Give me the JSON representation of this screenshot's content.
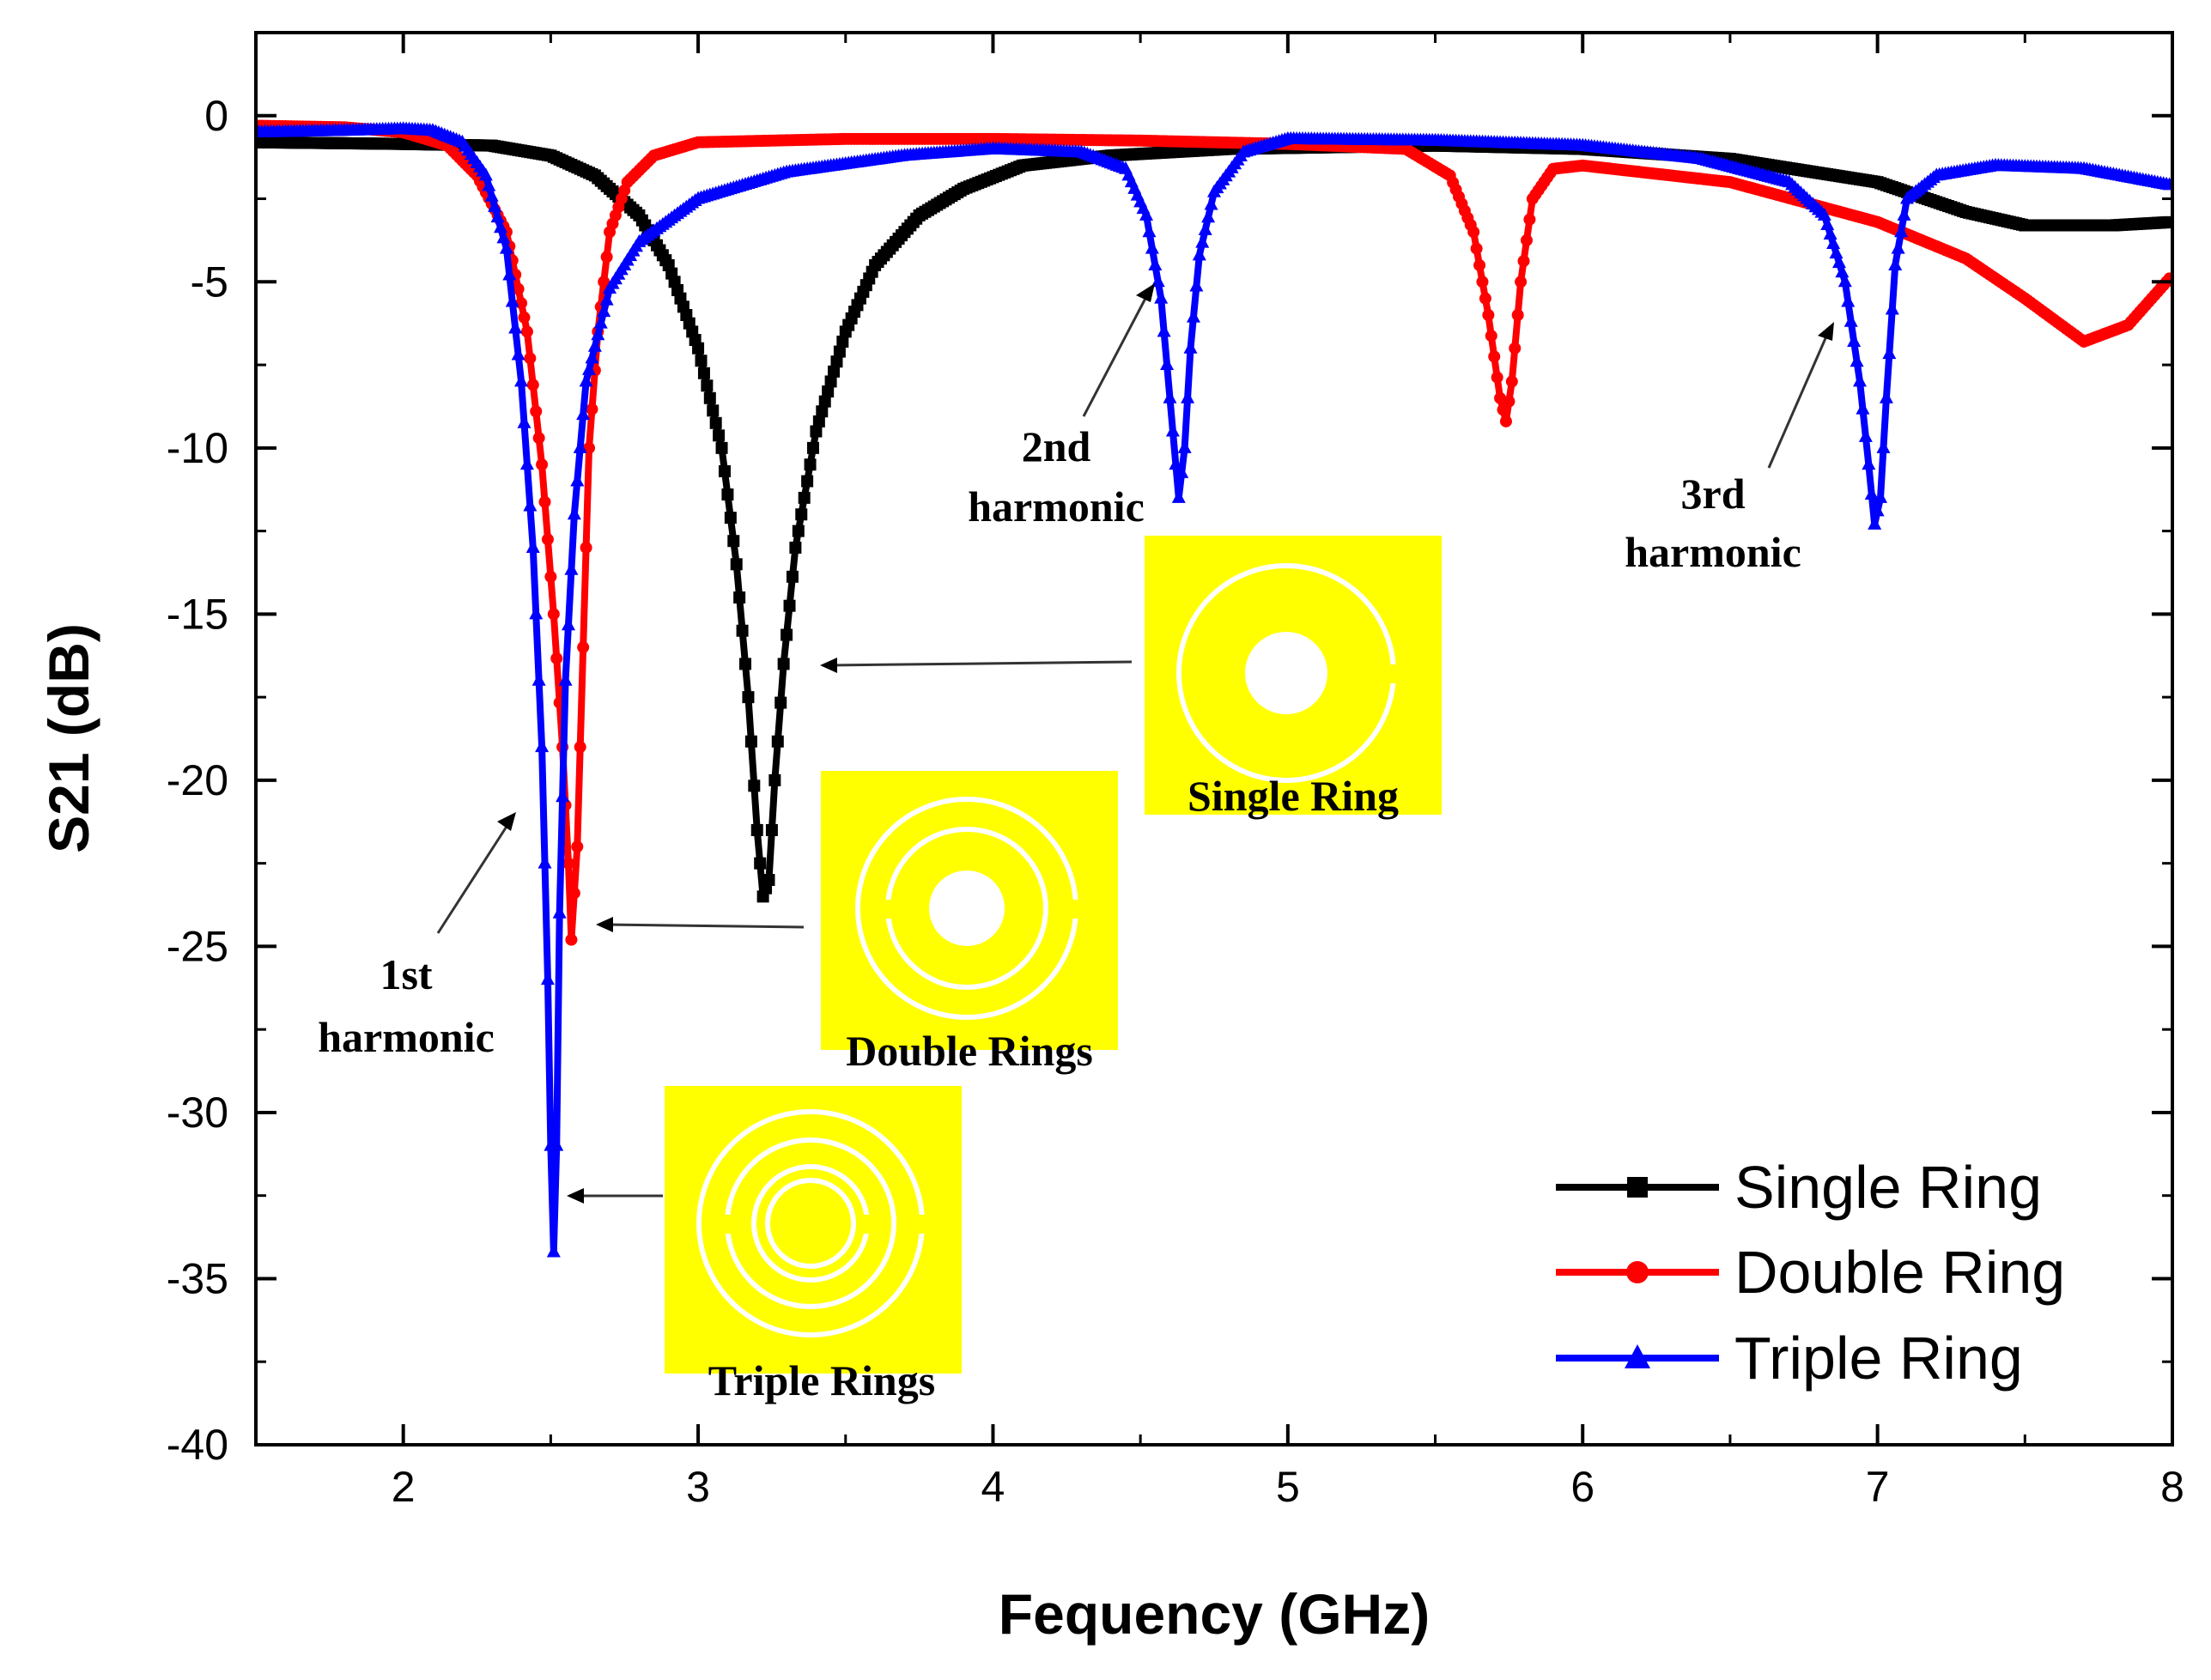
{
  "chart_data": {
    "type": "line",
    "xlabel": "Fequency (GHz)",
    "ylabel": "S21 (dB)",
    "xlim": [
      1.5,
      8
    ],
    "ylim": [
      -40,
      2.5
    ],
    "xticks": [
      2,
      3,
      4,
      5,
      6,
      7,
      8
    ],
    "yticks": [
      0,
      -5,
      -10,
      -15,
      -20,
      -25,
      -30,
      -35,
      -40
    ],
    "grid": false,
    "legend_position": "bottom-right",
    "series": [
      {
        "name": "Single Ring",
        "color": "#000000",
        "marker": "square",
        "points": [
          [
            1.5,
            -0.8
          ],
          [
            2.0,
            -0.85
          ],
          [
            2.3,
            -0.9
          ],
          [
            2.5,
            -1.2
          ],
          [
            2.65,
            -1.8
          ],
          [
            2.8,
            -3.0
          ],
          [
            2.9,
            -4.5
          ],
          [
            3.0,
            -7.0
          ],
          [
            3.08,
            -10.0
          ],
          [
            3.13,
            -13.5
          ],
          [
            3.17,
            -17.5
          ],
          [
            3.2,
            -21.5
          ],
          [
            3.22,
            -23.5
          ],
          [
            3.24,
            -23.0
          ],
          [
            3.26,
            -20.0
          ],
          [
            3.29,
            -16.5
          ],
          [
            3.33,
            -13.0
          ],
          [
            3.4,
            -9.5
          ],
          [
            3.5,
            -6.5
          ],
          [
            3.6,
            -4.5
          ],
          [
            3.75,
            -3.0
          ],
          [
            3.9,
            -2.2
          ],
          [
            4.1,
            -1.5
          ],
          [
            4.4,
            -1.2
          ],
          [
            4.8,
            -1.0
          ],
          [
            5.5,
            -0.9
          ],
          [
            6.0,
            -1.0
          ],
          [
            6.5,
            -1.3
          ],
          [
            7.0,
            -2.0
          ],
          [
            7.3,
            -2.9
          ],
          [
            7.5,
            -3.3
          ],
          [
            7.8,
            -3.3
          ],
          [
            8.0,
            -3.2
          ]
        ]
      },
      {
        "name": "Double Ring",
        "color": "#ff0000",
        "marker": "circle",
        "points": [
          [
            1.5,
            -0.3
          ],
          [
            1.8,
            -0.35
          ],
          [
            2.0,
            -0.5
          ],
          [
            2.15,
            -0.9
          ],
          [
            2.25,
            -1.8
          ],
          [
            2.35,
            -3.5
          ],
          [
            2.42,
            -6.5
          ],
          [
            2.47,
            -10.5
          ],
          [
            2.51,
            -15.0
          ],
          [
            2.54,
            -19.0
          ],
          [
            2.56,
            -22.5
          ],
          [
            2.57,
            -24.8
          ],
          [
            2.59,
            -22.0
          ],
          [
            2.61,
            -16.0
          ],
          [
            2.63,
            -10.0
          ],
          [
            2.66,
            -6.5
          ],
          [
            2.7,
            -3.5
          ],
          [
            2.76,
            -2.0
          ],
          [
            2.85,
            -1.2
          ],
          [
            3.0,
            -0.8
          ],
          [
            3.5,
            -0.7
          ],
          [
            4.0,
            -0.7
          ],
          [
            4.5,
            -0.75
          ],
          [
            5.0,
            -0.85
          ],
          [
            5.4,
            -1.0
          ],
          [
            5.55,
            -1.8
          ],
          [
            5.63,
            -3.5
          ],
          [
            5.68,
            -6.0
          ],
          [
            5.72,
            -8.5
          ],
          [
            5.74,
            -9.2
          ],
          [
            5.76,
            -8.0
          ],
          [
            5.79,
            -5.0
          ],
          [
            5.83,
            -2.5
          ],
          [
            5.9,
            -1.6
          ],
          [
            6.0,
            -1.5
          ],
          [
            6.5,
            -2.0
          ],
          [
            7.0,
            -3.2
          ],
          [
            7.3,
            -4.3
          ],
          [
            7.5,
            -5.5
          ],
          [
            7.7,
            -6.8
          ],
          [
            7.85,
            -6.3
          ],
          [
            8.0,
            -4.8
          ]
        ]
      },
      {
        "name": "Triple Ring",
        "color": "#0000ff",
        "marker": "triangle",
        "points": [
          [
            1.5,
            -0.5
          ],
          [
            1.8,
            -0.45
          ],
          [
            2.0,
            -0.4
          ],
          [
            2.1,
            -0.45
          ],
          [
            2.2,
            -0.8
          ],
          [
            2.28,
            -1.8
          ],
          [
            2.35,
            -4.0
          ],
          [
            2.4,
            -8.0
          ],
          [
            2.44,
            -13.0
          ],
          [
            2.47,
            -19.0
          ],
          [
            2.49,
            -26.0
          ],
          [
            2.5,
            -31.0
          ],
          [
            2.51,
            -34.2
          ],
          [
            2.52,
            -31.0
          ],
          [
            2.53,
            -24.0
          ],
          [
            2.55,
            -17.0
          ],
          [
            2.58,
            -12.0
          ],
          [
            2.62,
            -8.0
          ],
          [
            2.7,
            -5.2
          ],
          [
            2.8,
            -3.8
          ],
          [
            3.0,
            -2.5
          ],
          [
            3.3,
            -1.7
          ],
          [
            3.7,
            -1.2
          ],
          [
            4.0,
            -1.0
          ],
          [
            4.3,
            -1.1
          ],
          [
            4.45,
            -1.6
          ],
          [
            4.52,
            -3.0
          ],
          [
            4.57,
            -5.5
          ],
          [
            4.6,
            -8.5
          ],
          [
            4.62,
            -10.5
          ],
          [
            4.63,
            -11.5
          ],
          [
            4.65,
            -10.0
          ],
          [
            4.67,
            -7.0
          ],
          [
            4.7,
            -4.2
          ],
          [
            4.75,
            -2.3
          ],
          [
            4.85,
            -1.1
          ],
          [
            5.0,
            -0.7
          ],
          [
            5.5,
            -0.75
          ],
          [
            6.0,
            -0.9
          ],
          [
            6.4,
            -1.3
          ],
          [
            6.7,
            -2.0
          ],
          [
            6.82,
            -3.0
          ],
          [
            6.89,
            -5.0
          ],
          [
            6.94,
            -8.0
          ],
          [
            6.97,
            -10.5
          ],
          [
            6.99,
            -12.3
          ],
          [
            7.01,
            -11.5
          ],
          [
            7.03,
            -8.5
          ],
          [
            7.06,
            -4.5
          ],
          [
            7.1,
            -2.5
          ],
          [
            7.2,
            -1.8
          ],
          [
            7.4,
            -1.5
          ],
          [
            7.7,
            -1.6
          ],
          [
            8.0,
            -2.1
          ]
        ]
      }
    ],
    "annotations": [
      {
        "lines": [
          "1st",
          "harmonic"
        ]
      },
      {
        "lines": [
          "2nd",
          "harmonic"
        ]
      },
      {
        "lines": [
          "3rd",
          "harmonic"
        ]
      }
    ],
    "insets": [
      {
        "label": "Single Ring",
        "rings": 1,
        "color": "#ffff00"
      },
      {
        "label": "Double Rings",
        "rings": 2,
        "color": "#ffff00"
      },
      {
        "label": "Triple Rings",
        "rings": 3,
        "color": "#ffff00"
      }
    ]
  }
}
